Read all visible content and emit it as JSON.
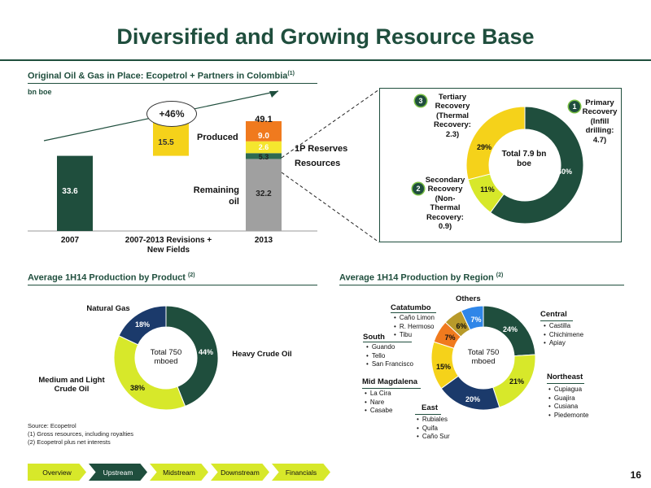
{
  "title": "Diversified and Growing Resource Base",
  "sections": {
    "top": "Original Oil & Gas in Place: Ecopetrol + Partners in Colombia",
    "top_sup": "(1)",
    "product": "Average 1H14 Production by Product",
    "product_sup": "(2)",
    "region": "Average 1H14 Production by Region",
    "region_sup": "(2)"
  },
  "unit": "bn boe",
  "colors": {
    "dark_green": "#1f4e3d",
    "yellow": "#f5d21a",
    "gold": "#f2c40f",
    "lime": "#d7e82a",
    "gray": "#a0a0a0",
    "orange": "#f07a1e",
    "blue": "#2f86e8",
    "navy": "#1b3a6b",
    "olive": "#b89a2a"
  },
  "chart_data": [
    {
      "type": "bar",
      "categories": [
        "2007",
        "2007-2013 Revisions + New Fields",
        "2013"
      ],
      "series": [
        {
          "name": "Remaining oil",
          "values": [
            33.6,
            0,
            32.2
          ]
        },
        {
          "name": "1P Reserves",
          "values": [
            0,
            0,
            2.6
          ]
        },
        {
          "name": "Resources",
          "values": [
            0,
            0,
            5.3
          ]
        },
        {
          "name": "Produced",
          "values": [
            0,
            0,
            9.0
          ]
        },
        {
          "name": "",
          "values": [
            0,
            15.5,
            0
          ]
        }
      ],
      "totals": [
        "",
        "",
        "49.1"
      ],
      "annotation": "+46%",
      "legend": {
        "produced": "Produced",
        "reserves": "1P Reserves",
        "resources": "Resources",
        "remaining": "Remaining oil"
      }
    },
    {
      "type": "pie",
      "center_label": "Total 7.9 bn boe",
      "slices": [
        {
          "label": "Primary Recovery (Infill drilling: 4.7)",
          "badge": "1",
          "value": 60,
          "text": "60%"
        },
        {
          "label": "Secondary Recovery (Non-Thermal Recovery: 0.9)",
          "badge": "2",
          "value": 11,
          "text": "11%"
        },
        {
          "label": "Tertiary Recovery (Thermal Recovery: 2.3)",
          "badge": "3",
          "value": 29,
          "text": "29%"
        }
      ]
    },
    {
      "type": "pie",
      "center_label": "Total 750 mboed",
      "slices": [
        {
          "label": "Heavy Crude Oil",
          "value": 44,
          "text": "44%"
        },
        {
          "label": "Medium and Light Crude Oil",
          "value": 38,
          "text": "38%"
        },
        {
          "label": "Natural Gas",
          "value": 18,
          "text": "18%"
        }
      ]
    },
    {
      "type": "pie",
      "center_label": "Total 750 mboed",
      "slices": [
        {
          "label": "Central",
          "value": 24,
          "text": "24%"
        },
        {
          "label": "Northeast",
          "value": 21,
          "text": "21%"
        },
        {
          "label": "East",
          "value": 20,
          "text": "20%"
        },
        {
          "label": "Mid Magdalena",
          "value": 15,
          "text": "15%"
        },
        {
          "label": "South",
          "value": 7,
          "text": "7%"
        },
        {
          "label": "Catatumbo",
          "value": 6,
          "text": "6%"
        },
        {
          "label": "Others",
          "value": 7,
          "text": "7%"
        }
      ]
    }
  ],
  "bar_labels": {
    "v2007": "33.6",
    "v_rev": "15.5",
    "v_remaining": "32.2",
    "v_resources": "5.3",
    "v_reserves": "2.6",
    "v_produced": "9.0",
    "total": "49.1",
    "growth": "+46%",
    "produced": "Produced",
    "reserves": "1P Reserves",
    "resources": "Resources",
    "remaining": "Remaining oil",
    "cat1": "2007",
    "cat2": "2007-2013 Revisions + New Fields",
    "cat3": "2013"
  },
  "recovery": {
    "center": "Total 7.9 bn boe",
    "primary": {
      "badge": "1",
      "label": "Primary Recovery (Infill drilling: 4.7)",
      "pct": "60%"
    },
    "secondary": {
      "badge": "2",
      "label": "Secondary Recovery (Non-Thermal Recovery: 0.9)",
      "pct": "11%"
    },
    "tertiary": {
      "badge": "3",
      "label": "Tertiary Recovery (Thermal Recovery: 2.3)",
      "pct": "29%"
    }
  },
  "product": {
    "center": "Total 750 mboed",
    "heavy": "Heavy Crude Oil",
    "medium": "Medium and Light Crude Oil",
    "gas": "Natural Gas",
    "p_heavy": "44%",
    "p_medium": "38%",
    "p_gas": "18%"
  },
  "region": {
    "center": "Total 750 mboed",
    "central": {
      "name": "Central",
      "fields": [
        "Castilla",
        "Chichimene",
        "Apiay"
      ],
      "pct": "24%"
    },
    "northeast": {
      "name": "Northeast",
      "fields": [
        "Cupiagua",
        "Guajira",
        "Cusiana",
        "Piedemonte"
      ],
      "pct": "21%"
    },
    "east": {
      "name": "East",
      "fields": [
        "Rubiales",
        "Quifa",
        "Caño Sur"
      ],
      "pct": "20%"
    },
    "mid": {
      "name": "Mid Magdalena",
      "fields": [
        "La Cira",
        "Nare",
        "Casabe"
      ],
      "pct": "15%"
    },
    "south": {
      "name": "South",
      "fields": [
        "Guando",
        "Tello",
        "San Francisco"
      ],
      "pct": "7%"
    },
    "catatumbo": {
      "name": "Catatumbo",
      "fields": [
        "Caño Limon",
        "R. Hermoso",
        "Tibu"
      ],
      "pct": "6%"
    },
    "others": {
      "name": "Others",
      "pct": "7%"
    }
  },
  "sources": {
    "line1": "Source: Ecopetrol",
    "line2": "(1)   Gross resources, including royalties",
    "line3": "(2)   Ecopetrol plus net interests"
  },
  "nav": [
    "Overview",
    "Upstream",
    "Midstream",
    "Downstream",
    "Financials"
  ],
  "nav_active": "Upstream",
  "page_number": "16"
}
